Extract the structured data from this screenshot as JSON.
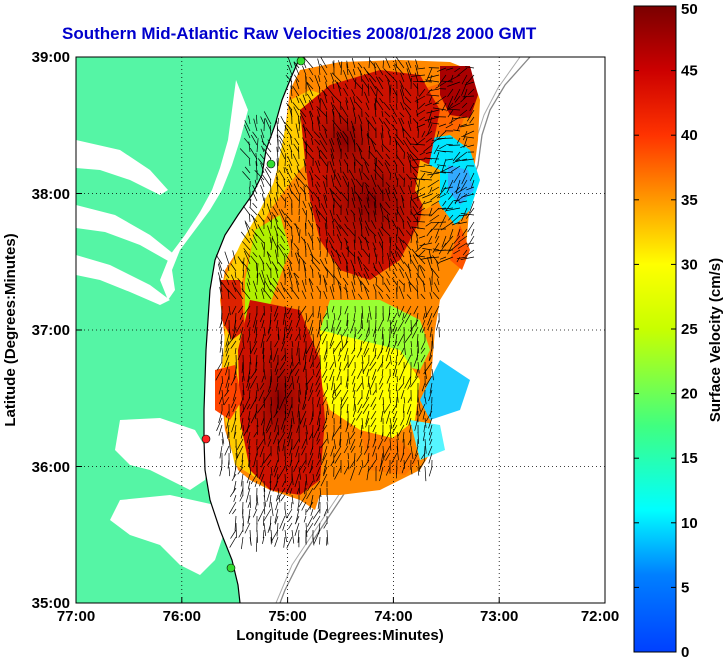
{
  "title": "Southern Mid-Atlantic Raw Velocities 2008/01/28 2000 GMT",
  "x_axis": {
    "label": "Longitude (Degrees:Minutes)",
    "ticks": [
      "77:00",
      "76:00",
      "75:00",
      "74:00",
      "73:00",
      "72:00"
    ]
  },
  "y_axis": {
    "label": "Latitude (Degrees:Minutes)",
    "ticks": [
      "39:00",
      "38:00",
      "37:00",
      "36:00",
      "35:00"
    ]
  },
  "colorbar": {
    "label": "Surface Velocity (cm/s)",
    "ticks": [
      "0",
      "5",
      "10",
      "15",
      "20",
      "25",
      "30",
      "35",
      "40",
      "45",
      "50"
    ],
    "colormap": "jet",
    "range": [
      0,
      50
    ]
  },
  "colors": {
    "land": "#55f5a5",
    "title": "#0000cc",
    "station_marker": "#33dd33",
    "station_marker_active": "#ff2222"
  }
}
